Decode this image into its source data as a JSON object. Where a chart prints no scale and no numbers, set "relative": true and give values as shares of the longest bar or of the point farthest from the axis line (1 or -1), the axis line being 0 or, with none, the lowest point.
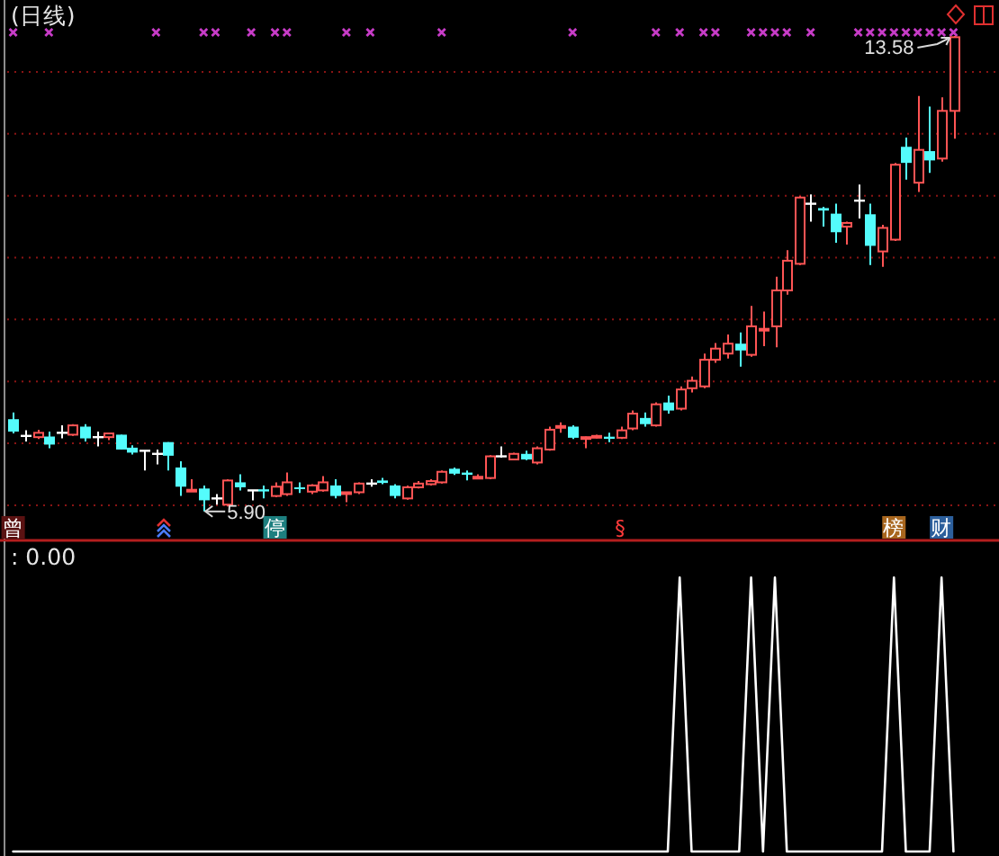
{
  "chart_data": [
    {
      "type": "candlestick",
      "title": "(日线)",
      "tick_labels": "x",
      "grid": "y",
      "categories": [
        "曾",
        null,
        null,
        null,
        null,
        null,
        null,
        null,
        null,
        null,
        null,
        null,
        null,
        null,
        null,
        null,
        null,
        null,
        null,
        null,
        null,
        null,
        "停",
        null,
        null,
        null,
        null,
        null,
        null,
        null,
        null,
        null,
        null,
        null,
        null,
        null,
        null,
        null,
        null,
        null,
        null,
        null,
        null,
        null,
        null,
        null,
        null,
        null,
        null,
        null,
        null,
        "§",
        null,
        null,
        null,
        null,
        null,
        null,
        null,
        null,
        null,
        null,
        null,
        null,
        null,
        null,
        null,
        null,
        null,
        null,
        null,
        null,
        null,
        null,
        "榜",
        null,
        null,
        null,
        "财",
        null
      ],
      "ohlc": [
        [
          7.39,
          7.5,
          7.16,
          7.19
        ],
        [
          7.12,
          7.21,
          7.03,
          7.12
        ],
        [
          7.1,
          7.22,
          7.07,
          7.17
        ],
        [
          7.11,
          7.19,
          6.92,
          6.98
        ],
        [
          7.17,
          7.29,
          7.08,
          7.17
        ],
        [
          7.14,
          7.31,
          7.12,
          7.29
        ],
        [
          7.27,
          7.31,
          7.03,
          7.08
        ],
        [
          7.1,
          7.19,
          6.95,
          7.1
        ],
        [
          7.1,
          7.16,
          7.05,
          7.16
        ],
        [
          7.14,
          7.14,
          6.9,
          6.9
        ],
        [
          6.93,
          6.97,
          6.82,
          6.85
        ],
        [
          6.88,
          6.88,
          6.56,
          6.88
        ],
        [
          6.83,
          6.9,
          6.66,
          6.83
        ],
        [
          7.02,
          7.02,
          6.56,
          6.8
        ],
        [
          6.61,
          6.71,
          6.15,
          6.3
        ],
        [
          6.24,
          6.42,
          6.23,
          6.25
        ],
        [
          6.27,
          6.32,
          5.9,
          6.08
        ],
        [
          6.11,
          6.18,
          6.01,
          6.11
        ],
        [
          6.01,
          6.42,
          5.98,
          6.4
        ],
        [
          6.37,
          6.5,
          6.24,
          6.29
        ],
        [
          6.24,
          6.24,
          6.08,
          6.24
        ],
        [
          6.24,
          6.32,
          6.11,
          6.24
        ],
        [
          6.15,
          6.37,
          6.13,
          6.3
        ],
        [
          6.18,
          6.53,
          6.15,
          6.37
        ],
        [
          6.29,
          6.37,
          6.2,
          6.26
        ],
        [
          6.22,
          6.34,
          6.18,
          6.32
        ],
        [
          6.24,
          6.47,
          6.22,
          6.37
        ],
        [
          6.32,
          6.42,
          6.11,
          6.15
        ],
        [
          6.2,
          6.21,
          6.05,
          6.21
        ],
        [
          6.21,
          6.37,
          6.18,
          6.35
        ],
        [
          6.35,
          6.42,
          6.3,
          6.35
        ],
        [
          6.4,
          6.44,
          6.34,
          6.36
        ],
        [
          6.32,
          6.34,
          6.11,
          6.15
        ],
        [
          6.11,
          6.32,
          6.09,
          6.29
        ],
        [
          6.29,
          6.39,
          6.27,
          6.35
        ],
        [
          6.34,
          6.42,
          6.32,
          6.39
        ],
        [
          6.37,
          6.56,
          6.35,
          6.54
        ],
        [
          6.59,
          6.61,
          6.49,
          6.51
        ],
        [
          6.51,
          6.56,
          6.4,
          6.51
        ],
        [
          6.44,
          6.5,
          6.42,
          6.46
        ],
        [
          6.44,
          6.81,
          6.42,
          6.79
        ],
        [
          6.79,
          6.95,
          6.77,
          6.79
        ],
        [
          6.74,
          6.85,
          6.74,
          6.83
        ],
        [
          6.83,
          6.88,
          6.73,
          6.74
        ],
        [
          6.69,
          6.95,
          6.66,
          6.92
        ],
        [
          6.9,
          7.27,
          6.88,
          7.22
        ],
        [
          7.26,
          7.34,
          7.17,
          7.28
        ],
        [
          7.27,
          7.29,
          7.07,
          7.09
        ],
        [
          7.09,
          7.11,
          6.92,
          7.1
        ],
        [
          7.1,
          7.14,
          7.08,
          7.12
        ],
        [
          7.09,
          7.17,
          7.02,
          7.09
        ],
        [
          7.09,
          7.27,
          7.07,
          7.21
        ],
        [
          7.24,
          7.53,
          7.21,
          7.48
        ],
        [
          7.41,
          7.5,
          7.27,
          7.31
        ],
        [
          7.29,
          7.66,
          7.27,
          7.63
        ],
        [
          7.66,
          7.77,
          7.48,
          7.53
        ],
        [
          7.56,
          7.92,
          7.53,
          7.87
        ],
        [
          7.89,
          8.08,
          7.82,
          8.01
        ],
        [
          7.92,
          8.45,
          7.89,
          8.35
        ],
        [
          8.35,
          8.62,
          8.3,
          8.53
        ],
        [
          8.45,
          8.76,
          8.37,
          8.61
        ],
        [
          8.61,
          8.79,
          8.24,
          8.5
        ],
        [
          8.43,
          9.22,
          8.4,
          8.89
        ],
        [
          8.83,
          9.13,
          8.57,
          8.85
        ],
        [
          8.89,
          9.69,
          8.55,
          9.47
        ],
        [
          9.47,
          10.12,
          9.4,
          9.95
        ],
        [
          9.9,
          10.99,
          9.88,
          10.97
        ],
        [
          10.87,
          11.02,
          10.58,
          10.87
        ],
        [
          10.8,
          10.82,
          10.5,
          10.76
        ],
        [
          10.71,
          10.87,
          10.24,
          10.41
        ],
        [
          10.5,
          10.58,
          10.21,
          10.56
        ],
        [
          10.92,
          11.18,
          10.63,
          10.92
        ],
        [
          10.7,
          10.87,
          9.88,
          10.19
        ],
        [
          10.1,
          10.53,
          9.85,
          10.48
        ],
        [
          10.29,
          11.53,
          10.27,
          11.5
        ],
        [
          11.79,
          11.94,
          11.26,
          11.53
        ],
        [
          11.21,
          12.61,
          11.06,
          11.74
        ],
        [
          11.72,
          12.44,
          11.37,
          11.57
        ],
        [
          11.6,
          12.59,
          11.55,
          12.37
        ],
        [
          12.37,
          13.58,
          11.92,
          13.56
        ]
      ],
      "colors": [
        "#54fcfc",
        "#ffffff",
        "#ff5454",
        "#54fcfc",
        "#ffffff",
        "#ff5454",
        "#54fcfc",
        "#ffffff",
        "#ff5454",
        "#54fcfc",
        "#54fcfc",
        "#ffffff",
        "#ffffff",
        "#54fcfc",
        "#54fcfc",
        "#ff5454",
        "#54fcfc",
        "#ffffff",
        "#ff5454",
        "#54fcfc",
        "#ffffff",
        "#54fcfc",
        "#ff5454",
        "#ff5454",
        "#54fcfc",
        "#ff5454",
        "#ff5454",
        "#54fcfc",
        "#ff5454",
        "#ff5454",
        "#ffffff",
        "#54fcfc",
        "#54fcfc",
        "#ff5454",
        "#ff5454",
        "#ff5454",
        "#ff5454",
        "#54fcfc",
        "#54fcfc",
        "#ff5454",
        "#ff5454",
        "#ffffff",
        "#ff5454",
        "#54fcfc",
        "#ff5454",
        "#ff5454",
        "#ff5454",
        "#54fcfc",
        "#ff5454",
        "#ff5454",
        "#54fcfc",
        "#ff5454",
        "#ff5454",
        "#54fcfc",
        "#ff5454",
        "#54fcfc",
        "#ff5454",
        "#ff5454",
        "#ff5454",
        "#ff5454",
        "#ff5454",
        "#54fcfc",
        "#ff5454",
        "#ff5454",
        "#ff5454",
        "#ff5454",
        "#ff5454",
        "#ffffff",
        "#54fcfc",
        "#54fcfc",
        "#ff5454",
        "#ffffff",
        "#54fcfc",
        "#ff5454",
        "#ff5454",
        "#54fcfc",
        "#ff5454",
        "#54fcfc",
        "#ff5454",
        "#ff5454"
      ],
      "yticks": [
        {
          "value": 6,
          "label": null
        },
        {
          "value": 7,
          "label": null
        },
        {
          "value": 8,
          "label": null
        },
        {
          "value": 9,
          "label": null
        },
        {
          "value": 10,
          "label": null
        },
        {
          "value": 11,
          "label": null
        },
        {
          "value": 12,
          "label": null
        },
        {
          "value": 13,
          "label": null
        }
      ],
      "annotations": [
        "13.58",
        "5.90"
      ]
    },
    {
      "type": "line",
      "relative": true,
      "title": ": 0.00",
      "color": "#ffffff",
      "categories": [
        null,
        null,
        null,
        null,
        null,
        null,
        null,
        null,
        null,
        null,
        null,
        null,
        null,
        null,
        null,
        null,
        null,
        null,
        null,
        null,
        null,
        null,
        null,
        null,
        null,
        null,
        null,
        null,
        null,
        null,
        null,
        null,
        null,
        null,
        null,
        null,
        null,
        null,
        null,
        null,
        null,
        null,
        null,
        null,
        null,
        null,
        null,
        null,
        null,
        null,
        null,
        null,
        null,
        null,
        null,
        null,
        null,
        null,
        null,
        null,
        null,
        null,
        null,
        null,
        null,
        null,
        null,
        null,
        null,
        null,
        null,
        null,
        null,
        null,
        null,
        null,
        null,
        null,
        null,
        null
      ],
      "values": [
        0,
        0,
        0,
        0,
        0,
        0,
        0,
        0,
        0,
        0,
        0,
        0,
        0,
        0,
        0,
        0,
        0,
        0,
        0,
        0,
        0,
        0,
        0,
        0,
        0,
        0,
        0,
        0,
        0,
        0,
        0,
        0,
        0,
        0,
        0,
        0,
        0,
        0,
        0,
        0,
        0,
        0,
        0,
        0,
        0,
        0,
        0,
        0,
        0,
        0,
        0,
        0,
        0,
        0,
        0,
        0,
        1,
        0,
        0,
        0,
        0,
        0,
        1,
        0,
        1,
        0,
        0,
        0,
        0,
        0,
        0,
        0,
        0,
        0,
        1,
        0,
        0,
        0,
        1,
        0
      ]
    }
  ]
}
